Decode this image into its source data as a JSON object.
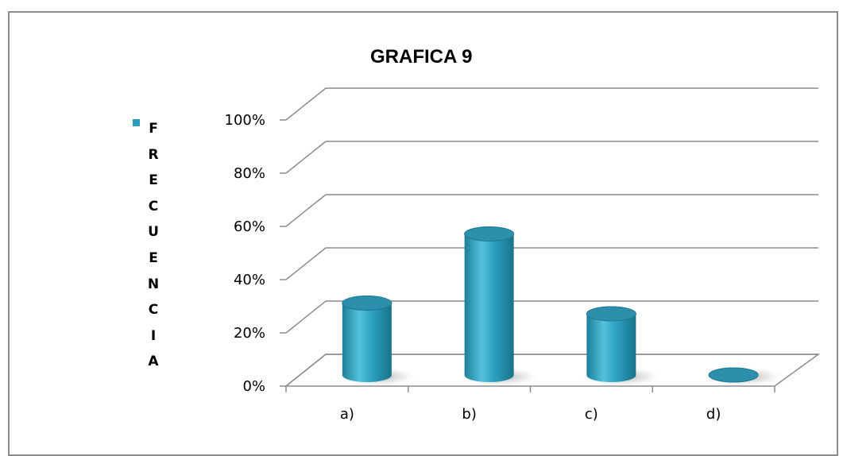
{
  "chart_data": {
    "type": "bar",
    "title": "GRAFICA 9",
    "categories": [
      "a)",
      "b)",
      "c)",
      "d)"
    ],
    "series": [
      {
        "name": "FRECUENCIA",
        "values": [
          0.27,
          0.53,
          0.23,
          0.0
        ]
      }
    ],
    "ylim": [
      0,
      1
    ],
    "yticks": [
      "0%",
      "20%",
      "40%",
      "60%",
      "80%",
      "100%"
    ],
    "grid": true,
    "legend_position": "left",
    "bar_color": "#2a9dbd"
  }
}
